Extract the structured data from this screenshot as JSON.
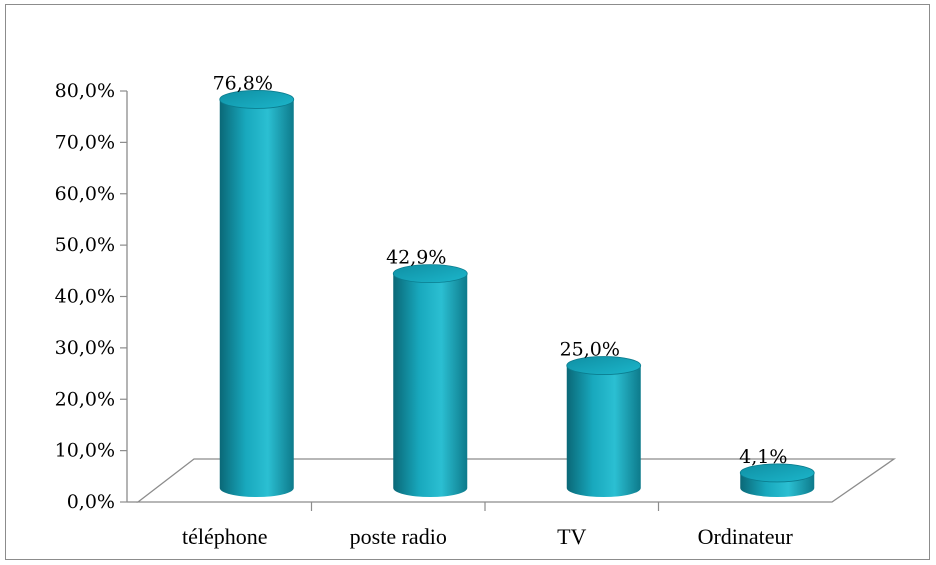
{
  "chart_data": {
    "type": "bar",
    "style": "3d-cylinder",
    "categories": [
      "téléphone",
      "poste radio",
      "TV",
      "Ordinateur"
    ],
    "values": [
      76.8,
      42.9,
      25.0,
      4.1
    ],
    "data_labels": [
      "76,8%",
      "42,9%",
      "25,0%",
      "4,1%"
    ],
    "yticks": [
      "0,0%",
      "10,0%",
      "20,0%",
      "30,0%",
      "40,0%",
      "50,0%",
      "60,0%",
      "70,0%",
      "80,0%"
    ],
    "ylim": [
      0,
      80
    ],
    "grid": false,
    "legend": "none",
    "colors": {
      "bar": "#17a3b8",
      "bar_light": "#4fd0e0",
      "bar_dark": "#0b6f80",
      "axis": "#8c8c8c"
    }
  }
}
